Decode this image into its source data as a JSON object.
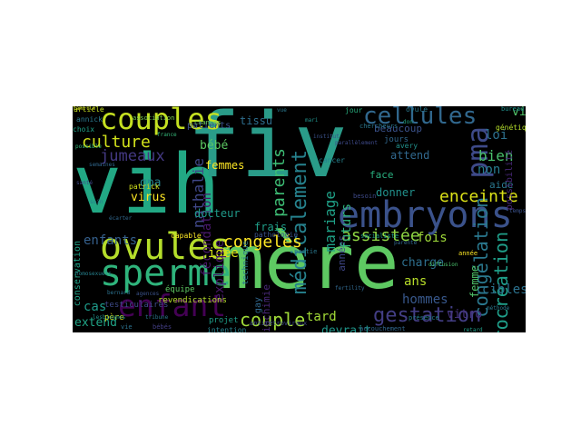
{
  "wordcloud": {
    "background": "#000000",
    "words": [
      {
        "text": "vih",
        "color": "#22a884",
        "rot": 0
      },
      {
        "text": "fiv",
        "color": "#2a9c89",
        "rot": 0
      },
      {
        "text": "mère",
        "color": "#5ec962",
        "rot": 0
      },
      {
        "text": "embryons",
        "color": "#3b528b",
        "rot": 0
      },
      {
        "text": "sperme",
        "color": "#2fb47c",
        "rot": 0
      },
      {
        "text": "ovules",
        "color": "#b5de2b",
        "rot": 0
      },
      {
        "text": "couples",
        "color": "#c5e021",
        "rot": 0
      },
      {
        "text": "cellules",
        "color": "#31688e",
        "rot": 0
      },
      {
        "text": "enfant",
        "color": "#440154",
        "rot": 0
      },
      {
        "text": "pma",
        "color": "#3e4a89",
        "rot": -90
      },
      {
        "text": "médicalement",
        "color": "#26828e",
        "rot": -90
      },
      {
        "text": "gestation",
        "color": "#433e85",
        "rot": 0
      },
      {
        "text": "congélation",
        "color": "#2a788e",
        "rot": -90
      },
      {
        "text": "procréation",
        "color": "#1f9e89",
        "rot": -90
      },
      {
        "text": "culture",
        "color": "#d2e21b",
        "rot": 0
      },
      {
        "text": "congelés",
        "color": "#fde725",
        "rot": 0
      },
      {
        "text": "assistée",
        "color": "#8fd744",
        "rot": 0
      },
      {
        "text": "couple",
        "color": "#a0da39",
        "rot": 0
      },
      {
        "text": "parents",
        "color": "#3dbc74",
        "rot": -90
      },
      {
        "text": "jumeaux",
        "color": "#443983",
        "rot": 0
      },
      {
        "text": "enceinte",
        "color": "#dde318",
        "rot": 0
      },
      {
        "text": "enfants",
        "color": "#35608d",
        "rot": 0
      },
      {
        "text": "mariage",
        "color": "#1fa187",
        "rot": -90
      },
      {
        "text": "nathalie",
        "color": "#3f4788",
        "rot": -90
      },
      {
        "text": "fécondation",
        "color": "#48186a",
        "rot": -90
      },
      {
        "text": "bien",
        "color": "#4ac16d",
        "rot": 0
      },
      {
        "text": "loi",
        "color": "#2d708e",
        "rot": 0
      },
      {
        "text": "non",
        "color": "#287d8e",
        "rot": 0
      },
      {
        "text": "gpa",
        "color": "#25858e",
        "rot": 0
      },
      {
        "text": "virus",
        "color": "#fde725",
        "rot": 0
      },
      {
        "text": "cas",
        "color": "#1e9b8a",
        "rot": 0
      },
      {
        "text": "fois",
        "color": "#9fda3a",
        "rot": 0
      },
      {
        "text": "ans",
        "color": "#b8de29",
        "rot": 0
      },
      {
        "text": "hommes",
        "color": "#38588c",
        "rot": 0
      },
      {
        "text": "vitro",
        "color": "#46327e",
        "rot": 0
      },
      {
        "text": "tard",
        "color": "#a2da37",
        "rot": 0
      },
      {
        "text": "devrait",
        "color": "#1f968b",
        "rot": 0
      },
      {
        "text": "cibles",
        "color": "#2c728e",
        "rot": 0
      },
      {
        "text": "viral",
        "color": "#52c569",
        "rot": 0
      },
      {
        "text": "charge",
        "color": "#2e6f8e",
        "rot": 0
      },
      {
        "text": "idée",
        "color": "#d8e219",
        "rot": 0
      },
      {
        "text": "extend",
        "color": "#20a486",
        "rot": 0
      },
      {
        "text": "bébé",
        "color": "#5cc863",
        "rot": 0
      },
      {
        "text": "femmes",
        "color": "#fde725",
        "rot": 0
      },
      {
        "text": "tissu",
        "color": "#2e6e8e",
        "rot": 0
      },
      {
        "text": "beaucoup",
        "color": "#3b528b",
        "rot": 0
      },
      {
        "text": "donner",
        "color": "#21918c",
        "rot": 0
      },
      {
        "text": "attend",
        "color": "#31688e",
        "rot": 0
      },
      {
        "text": "face",
        "color": "#29af7f",
        "rot": 0
      },
      {
        "text": "patients",
        "color": "#3b528b",
        "rot": 0
      },
      {
        "text": "docteur",
        "color": "#1f9a8a",
        "rot": 0
      },
      {
        "text": "femme",
        "color": "#50c46a",
        "rot": -90
      },
      {
        "text": "aide",
        "color": "#2a788e",
        "rot": 0
      },
      {
        "text": "frais",
        "color": "#1f9e89",
        "rot": 0
      },
      {
        "text": "explique",
        "color": "#48186a",
        "rot": -90
      },
      {
        "text": "années",
        "color": "#3f4788",
        "rot": -90
      },
      {
        "text": "futurs",
        "color": "#2fb47c",
        "rot": -90
      },
      {
        "text": "possibilité",
        "color": "#482878",
        "rot": -90
      },
      {
        "text": "projet",
        "color": "#1f9e89",
        "rot": 0
      },
      {
        "text": "jour",
        "color": "#29af7f",
        "rot": 0
      },
      {
        "text": "jours",
        "color": "#31688e",
        "rot": 0
      },
      {
        "text": "ovule",
        "color": "#2a788e",
        "rot": 0
      },
      {
        "text": "avery",
        "color": "#21918c",
        "rot": 0
      },
      {
        "text": "cancer",
        "color": "#26828e",
        "rot": 0
      },
      {
        "text": "pathologie",
        "color": "#3b528b",
        "rot": 0
      },
      {
        "text": "conservation",
        "color": "#1fa187",
        "rot": -90
      },
      {
        "text": "père",
        "color": "#dde318",
        "rot": 0
      },
      {
        "text": "revendications",
        "color": "#b5de2b",
        "rot": 0
      },
      {
        "text": "testiculaires",
        "color": "#3e4a89",
        "rot": 0
      },
      {
        "text": "biochimie",
        "color": "#482878",
        "rot": -90
      },
      {
        "text": "gay",
        "color": "#31688e",
        "rot": -90
      },
      {
        "text": "technique",
        "color": "#2a788e",
        "rot": -90
      },
      {
        "text": "patrick",
        "color": "#d2e21b",
        "rot": 0
      },
      {
        "text": "capable",
        "color": "#fde725",
        "rot": 0
      },
      {
        "text": "association",
        "color": "#7ad151",
        "rot": 0
      },
      {
        "text": "chances",
        "color": "#73d056",
        "rot": 0
      },
      {
        "text": "intention",
        "color": "#26828e",
        "rot": 0
      },
      {
        "text": "antirétroviraux",
        "color": "#3e4a89",
        "rot": 0
      },
      {
        "text": "article",
        "color": "#c5e021",
        "rot": 0
      },
      {
        "text": "annick",
        "color": "#2a788e",
        "rot": 0
      },
      {
        "text": "choix",
        "color": "#1fa187",
        "rot": 0
      },
      {
        "text": "équipe",
        "color": "#5ec962",
        "rot": 0
      },
      {
        "text": "vie",
        "color": "#2c728e",
        "rot": 0
      },
      {
        "text": "bébés",
        "color": "#433e85",
        "rot": 0
      },
      {
        "text": "accouchement",
        "color": "#31688e",
        "rot": 0
      },
      {
        "text": "chercheurs",
        "color": "#2a788e",
        "rot": 0
      },
      {
        "text": "présence",
        "color": "#26828e",
        "rot": 0
      },
      {
        "text": "génétique",
        "color": "#b5de2b",
        "rot": 0
      },
      {
        "text": "bureau",
        "color": "#21918c",
        "rot": 0
      },
      {
        "text": "socialiste",
        "color": "#1f9e89",
        "rot": 0
      },
      {
        "text": "partie",
        "color": "#2a788e",
        "rot": 0
      },
      {
        "text": "besoin",
        "color": "#3e4a89",
        "rot": 0
      },
      {
        "text": "parenté",
        "color": "#31688e",
        "rot": 0
      },
      {
        "text": "année",
        "color": "#fde725",
        "rot": 0
      },
      {
        "text": "diffusion",
        "color": "#4ac16d",
        "rot": 0
      },
      {
        "text": "don",
        "color": "#22a884",
        "rot": 0
      },
      {
        "text": "bernard",
        "color": "#2c728e",
        "rot": 0
      },
      {
        "text": "agences",
        "color": "#3b528b",
        "rot": 0
      },
      {
        "text": "tribune",
        "color": "#2a788e",
        "rot": 0
      },
      {
        "text": "fertility",
        "color": "#31688e",
        "rot": 0
      },
      {
        "text": "mari",
        "color": "#21918c",
        "rot": 0
      },
      {
        "text": "parallèlement",
        "color": "#3e4a89",
        "rot": 0
      },
      {
        "text": "vue",
        "color": "#2a788e",
        "rot": 0
      },
      {
        "text": "institut",
        "color": "#3b528b",
        "rot": 0
      },
      {
        "text": "france",
        "color": "#35b779",
        "rot": 0
      },
      {
        "text": "santé",
        "color": "#3e4a89",
        "rot": 0
      },
      {
        "text": "soin",
        "color": "#2a788e",
        "rot": 0
      },
      {
        "text": "écarter",
        "color": "#31688e",
        "rot": 0
      },
      {
        "text": "homosexuels",
        "color": "#26828e",
        "rot": 0
      },
      {
        "text": "lesbiennes",
        "color": "#21918c",
        "rot": 0
      },
      {
        "text": "méthode",
        "color": "#2a788e",
        "rot": 0
      },
      {
        "text": "temps",
        "color": "#3b528b",
        "rot": 0
      },
      {
        "text": "retard",
        "color": "#1f9e89",
        "rot": 0
      },
      {
        "text": "possible",
        "color": "#35b779",
        "rot": 0
      },
      {
        "text": "semaines",
        "color": "#31688e",
        "rot": 0
      },
      {
        "text": "famille",
        "color": "#d2e21b",
        "rot": 0
      }
    ]
  }
}
